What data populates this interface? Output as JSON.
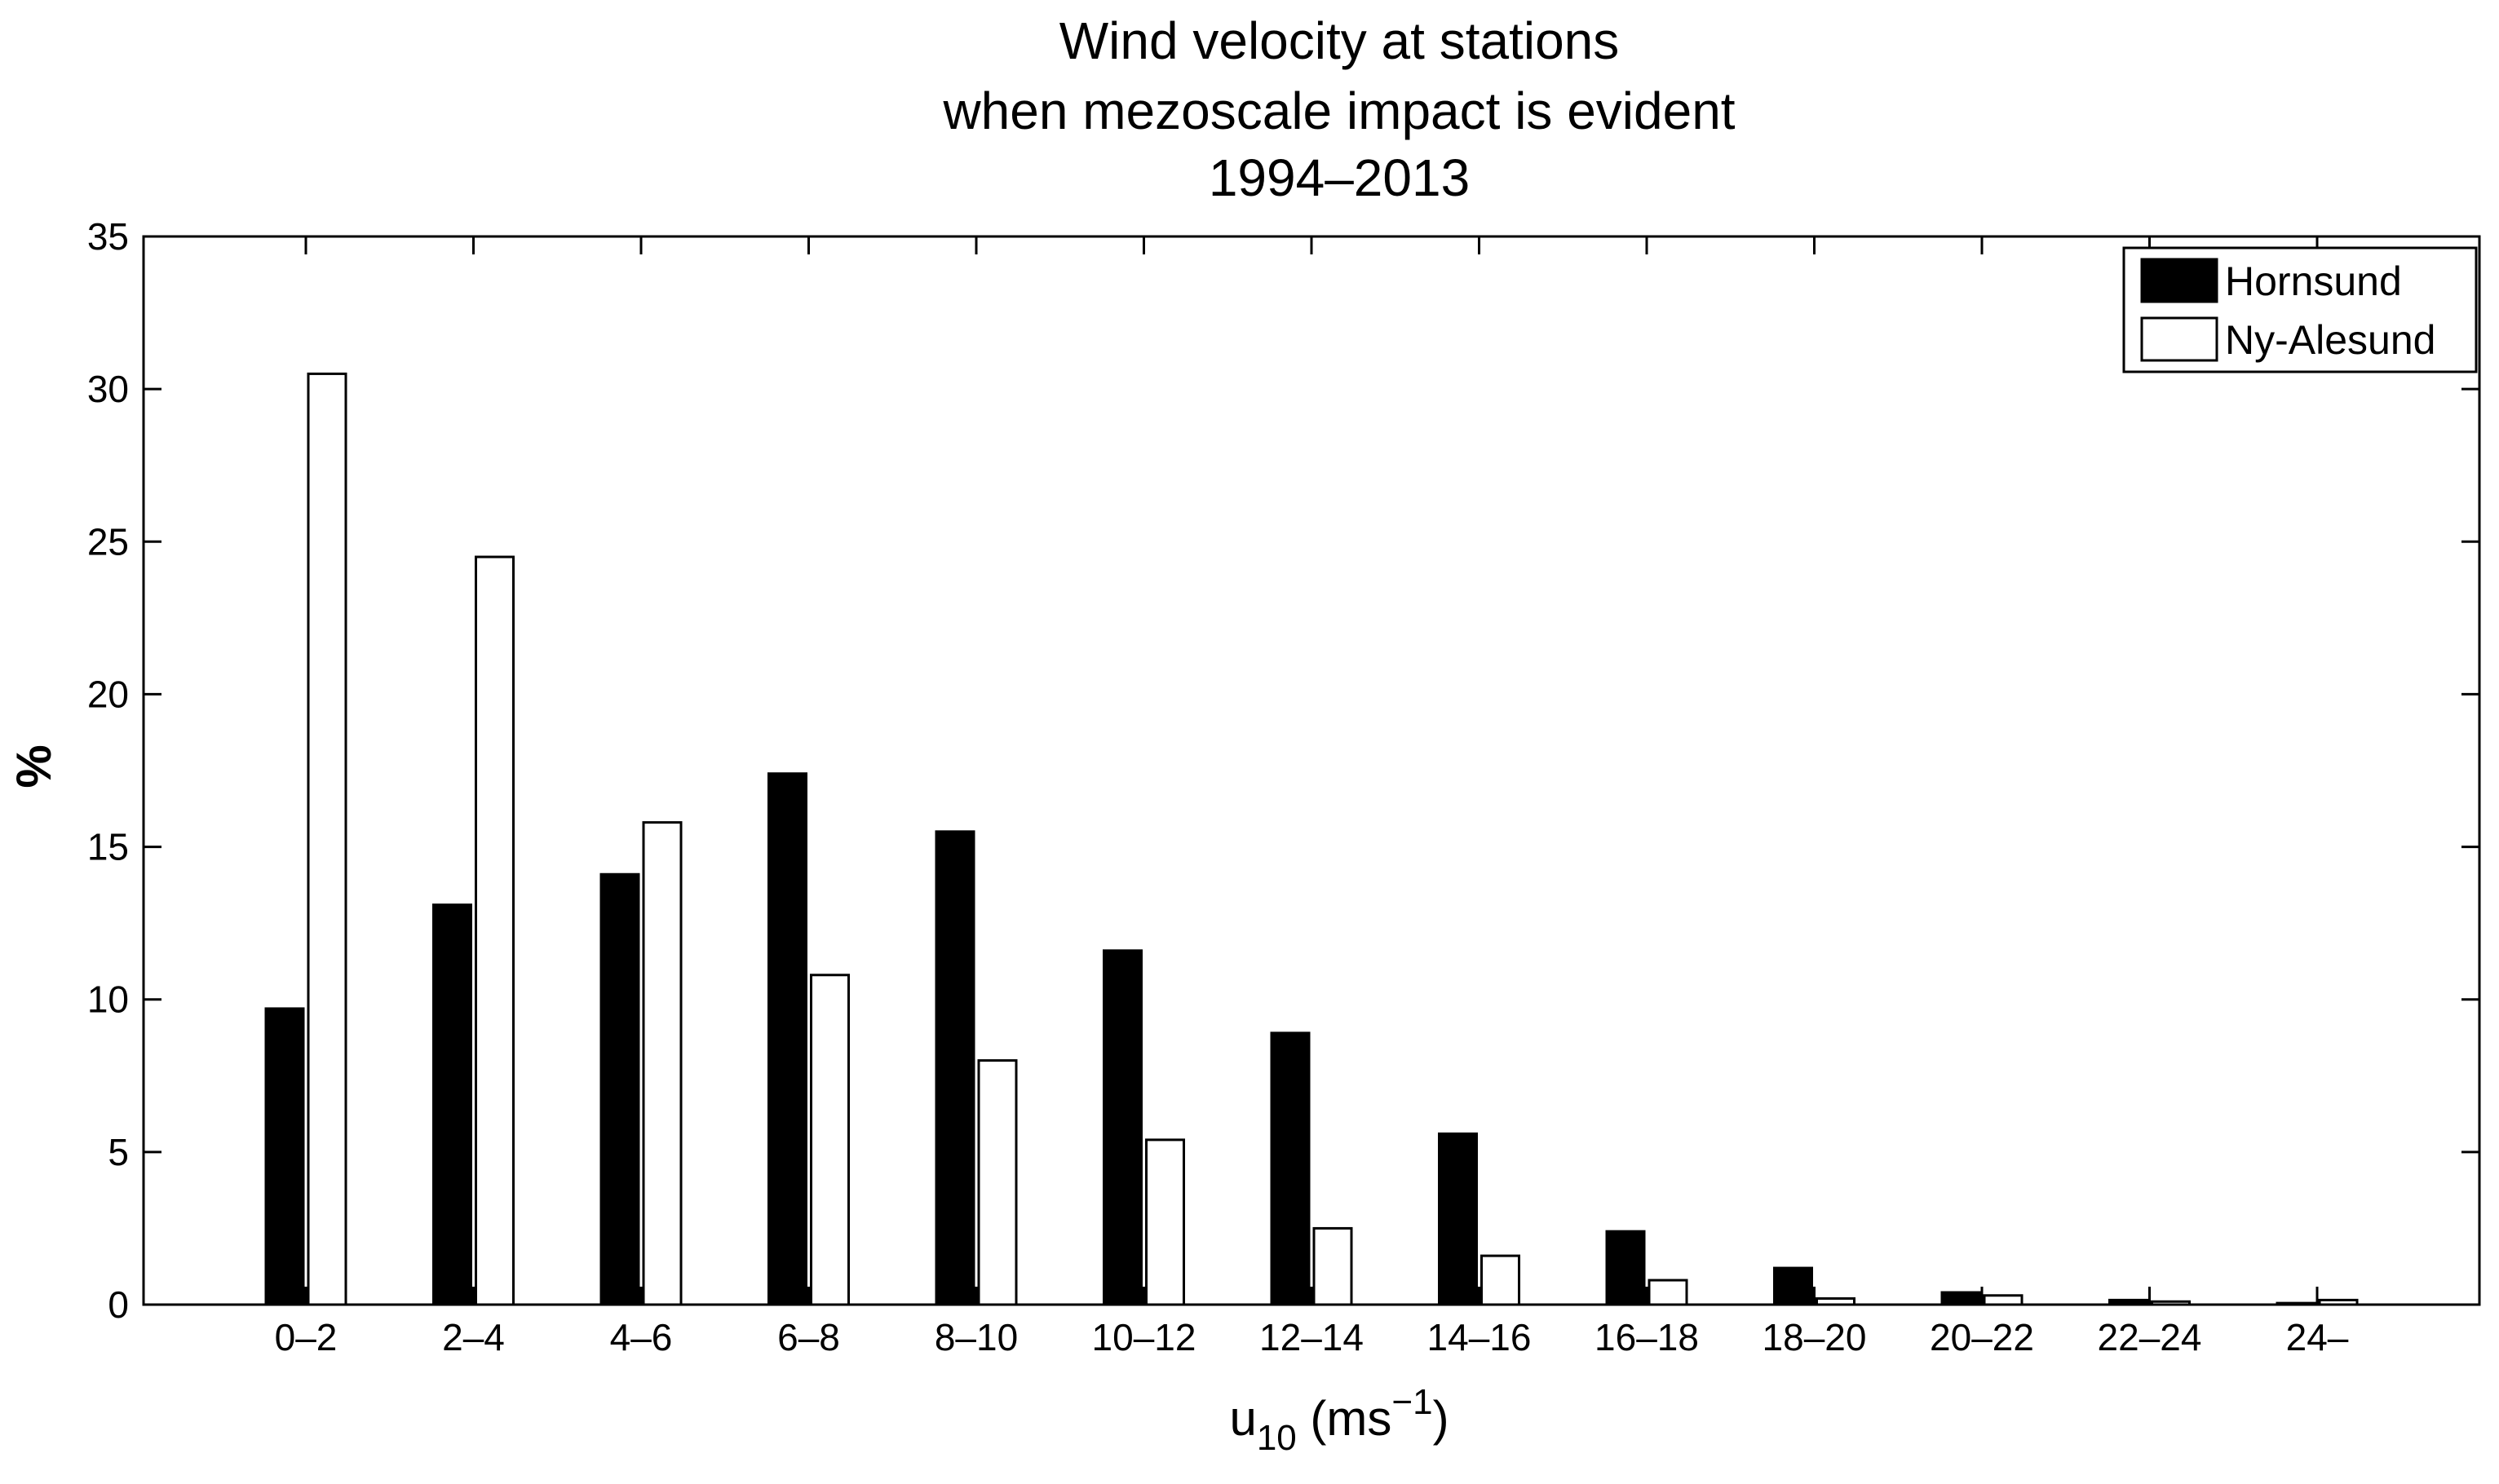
{
  "chart_data": {
    "type": "bar",
    "title": [
      "Wind velocity at stations",
      "when mezoscale impact is evident",
      "1994–2013"
    ],
    "xlabel": {
      "base": "u",
      "sub": "10",
      "unit_pre": " (ms",
      "sup": "−1",
      "unit_post": ")"
    },
    "ylabel": "%",
    "ylim": [
      0,
      35
    ],
    "yticks": [
      0,
      5,
      10,
      15,
      20,
      25,
      30,
      35
    ],
    "categories": [
      "0–2",
      "2–4",
      "4–6",
      "6–8",
      "8–10",
      "10–12",
      "12–14",
      "14–16",
      "16–18",
      "18–20",
      "20–22",
      "22–24",
      "24–"
    ],
    "series": [
      {
        "name": "Hornsund",
        "color": "#000000",
        "values": [
          9.7,
          13.1,
          14.1,
          17.4,
          15.5,
          11.6,
          8.9,
          5.6,
          2.4,
          1.2,
          0.4,
          0.15,
          0.05
        ]
      },
      {
        "name": "Ny-Alesund",
        "color": "#ffffff",
        "values": [
          30.5,
          24.5,
          15.8,
          10.8,
          8.0,
          5.4,
          2.5,
          1.6,
          0.8,
          0.2,
          0.3,
          0.1,
          0.15
        ]
      }
    ],
    "legend_position": "top-right",
    "grid": false
  }
}
